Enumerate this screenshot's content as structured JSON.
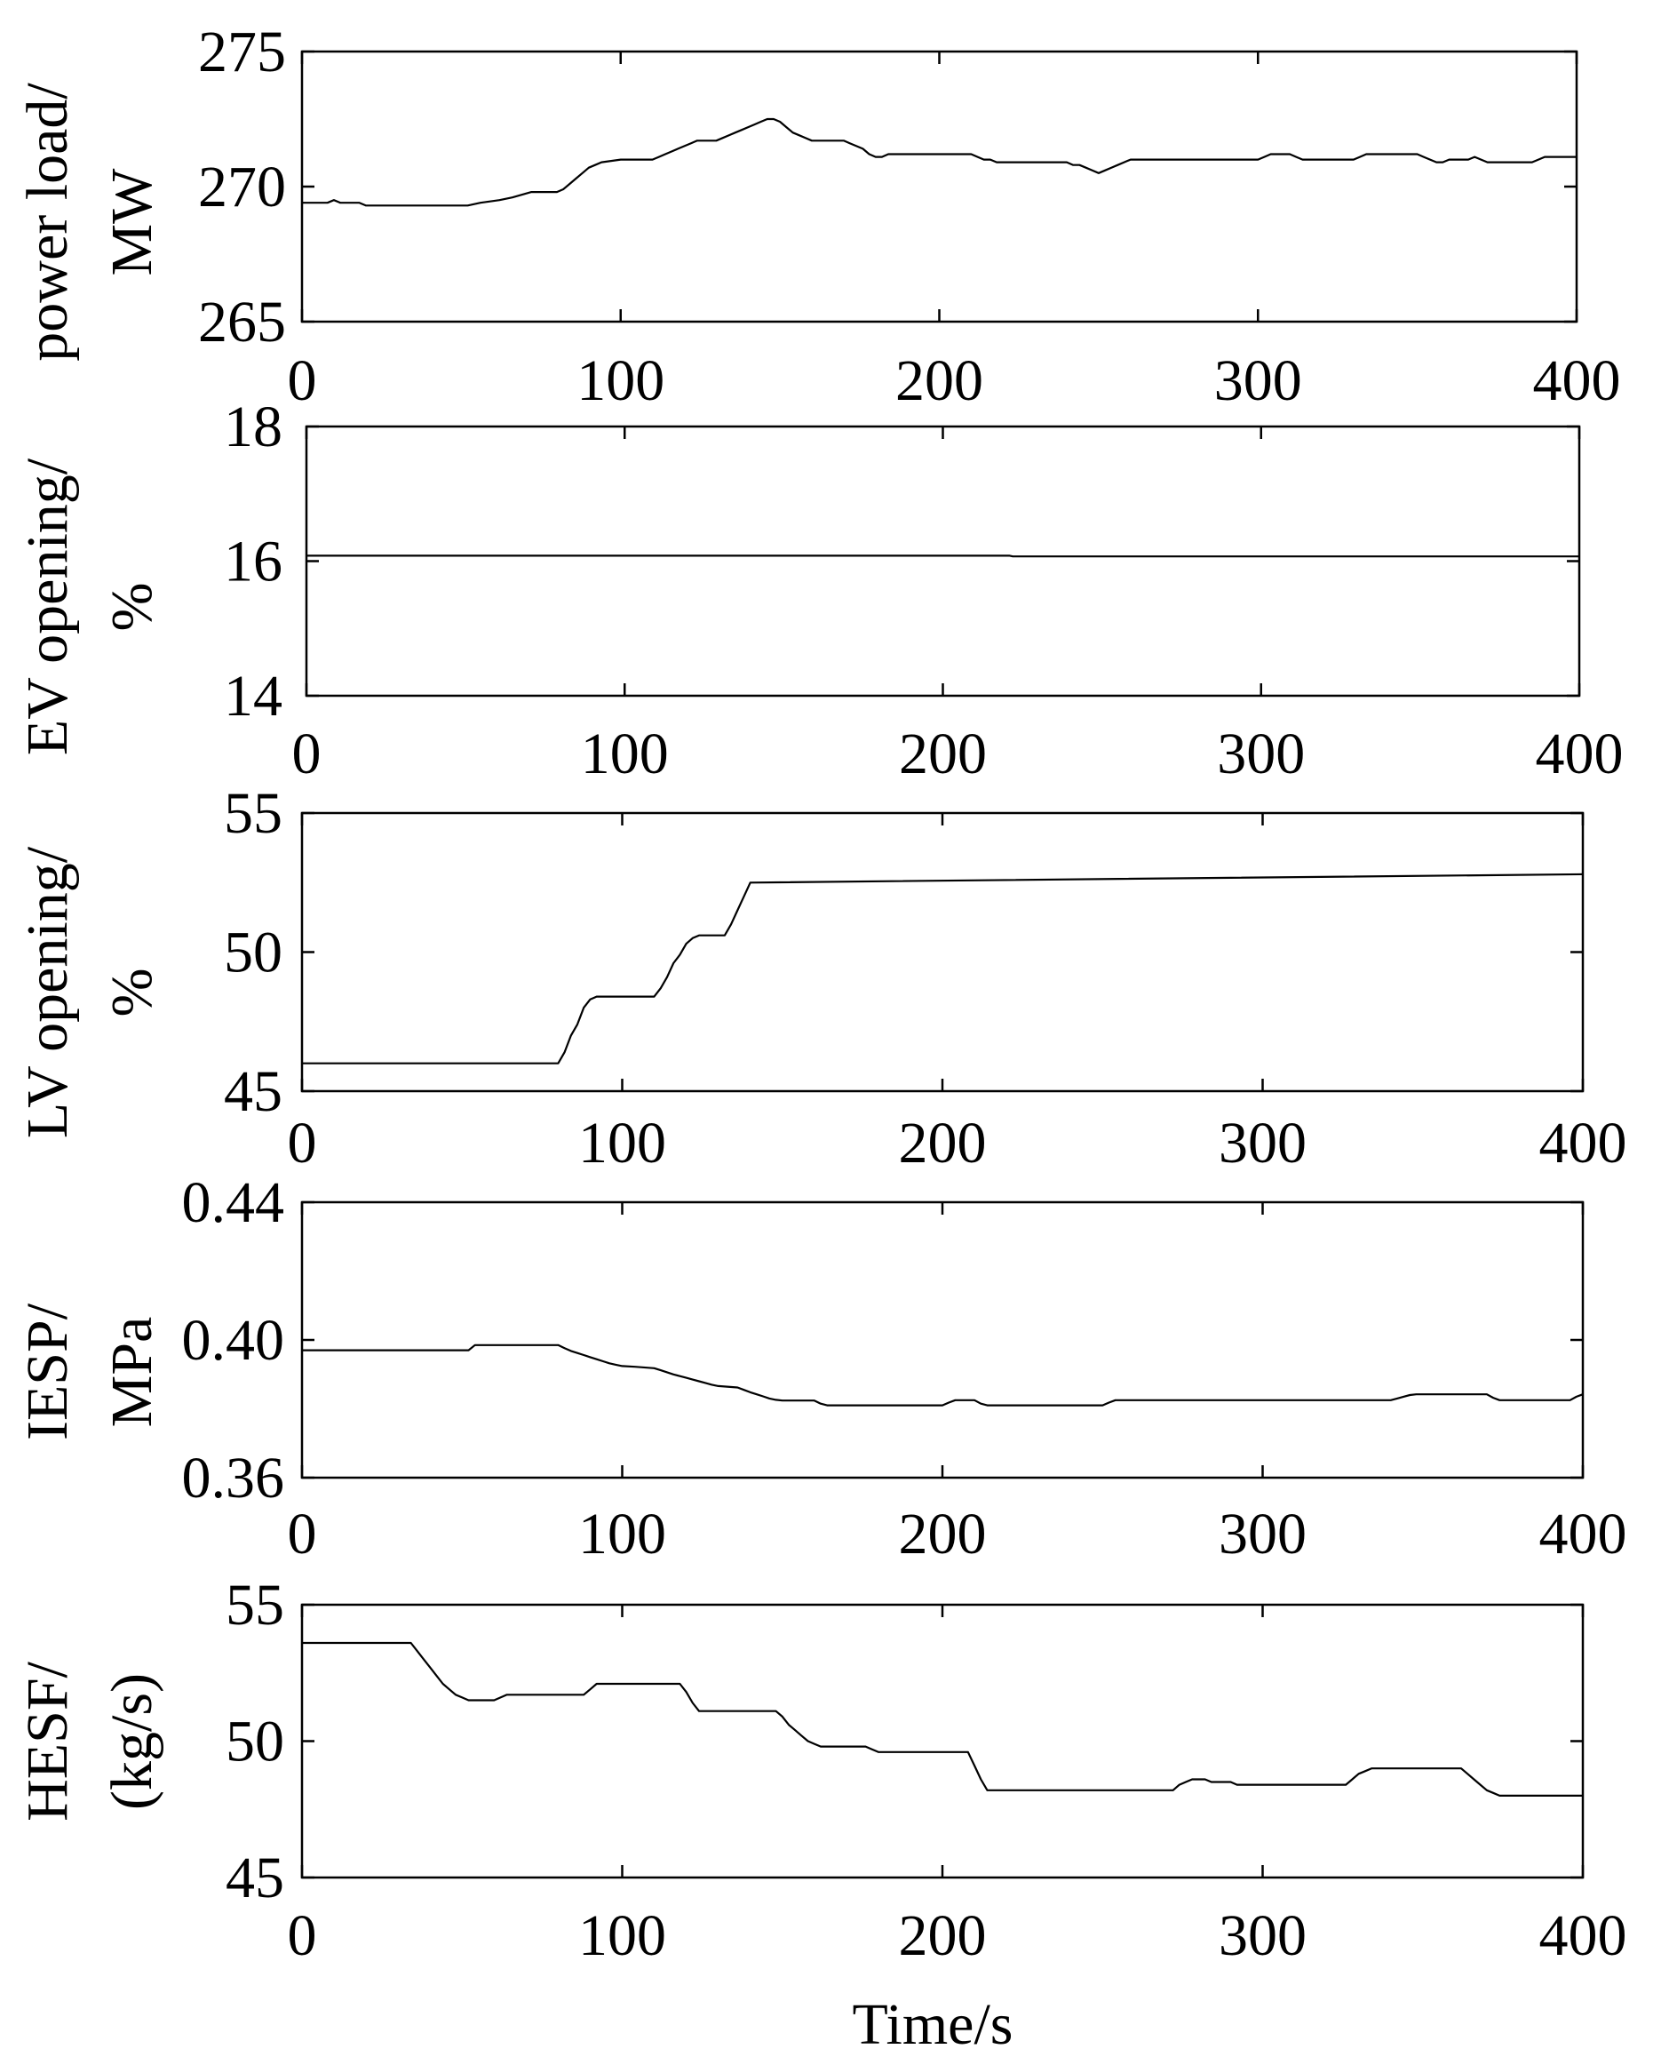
{
  "figure": {
    "xlabel": "Time/s"
  },
  "chart_data": [
    {
      "type": "line",
      "ylabel": [
        "power load/",
        "MW"
      ],
      "xlim": [
        0,
        400
      ],
      "ylim": [
        265,
        275
      ],
      "xticks": [
        0,
        100,
        200,
        300,
        400
      ],
      "xtick_labels": [
        "0",
        "100",
        "200",
        "300",
        "400"
      ],
      "yticks": [
        265,
        270,
        275
      ],
      "ytick_labels": [
        "265",
        "270",
        "275"
      ],
      "grid": false,
      "series": [
        {
          "x": [
            0,
            8,
            10,
            12,
            18,
            20,
            52,
            56,
            62,
            66,
            72,
            80,
            82,
            84,
            86,
            88,
            90,
            92,
            94,
            100,
            110,
            112,
            114,
            116,
            118,
            120,
            122,
            124,
            130,
            132,
            134,
            136,
            138,
            140,
            142,
            144,
            146,
            148,
            150,
            152,
            154,
            156,
            158,
            160,
            170,
            172,
            174,
            176,
            178,
            180,
            182,
            184,
            186,
            188,
            200,
            210,
            212,
            214,
            216,
            218,
            220,
            240,
            242,
            244,
            246,
            248,
            250,
            252,
            254,
            256,
            258,
            260,
            300,
            302,
            304,
            310,
            312,
            314,
            330,
            332,
            334,
            350,
            352,
            354,
            356,
            358,
            360,
            366,
            368,
            370,
            372,
            374,
            376,
            386,
            388,
            390,
            400
          ],
          "y": [
            269.4,
            269.4,
            269.5,
            269.4,
            269.4,
            269.3,
            269.3,
            269.4,
            269.5,
            269.6,
            269.8,
            269.8,
            269.9,
            270.1,
            270.3,
            270.5,
            270.7,
            270.8,
            270.9,
            271.0,
            271.0,
            271.1,
            271.2,
            271.3,
            271.4,
            271.5,
            271.6,
            271.7,
            271.7,
            271.8,
            271.9,
            272.0,
            272.1,
            272.2,
            272.3,
            272.4,
            272.5,
            272.5,
            272.4,
            272.2,
            272.0,
            271.9,
            271.8,
            271.7,
            271.7,
            271.6,
            271.5,
            271.4,
            271.2,
            271.1,
            271.1,
            271.2,
            271.2,
            271.2,
            271.2,
            271.2,
            271.1,
            271.0,
            271.0,
            270.9,
            270.9,
            270.9,
            270.8,
            270.8,
            270.7,
            270.6,
            270.5,
            270.6,
            270.7,
            270.8,
            270.9,
            271.0,
            271.0,
            271.1,
            271.2,
            271.2,
            271.1,
            271.0,
            271.0,
            271.1,
            271.2,
            271.2,
            271.1,
            271.0,
            270.9,
            270.9,
            271.0,
            271.0,
            271.1,
            271.0,
            270.9,
            270.9,
            270.9,
            270.9,
            271.0,
            271.1,
            271.1
          ]
        }
      ]
    },
    {
      "type": "line",
      "ylabel": [
        "EV opening/",
        "%"
      ],
      "xlim": [
        0,
        400
      ],
      "ylim": [
        14,
        18
      ],
      "xticks": [
        0,
        100,
        200,
        300,
        400
      ],
      "xtick_labels": [
        "0",
        "100",
        "200",
        "300",
        "400"
      ],
      "yticks": [
        14,
        16,
        18
      ],
      "ytick_labels": [
        "14",
        "16",
        "18"
      ],
      "grid": false,
      "series": [
        {
          "x": [
            0,
            221,
            222,
            400
          ],
          "y": [
            16.08,
            16.08,
            16.07,
            16.07
          ]
        }
      ]
    },
    {
      "type": "line",
      "ylabel": [
        "LV opening/",
        "%"
      ],
      "xlim": [
        0,
        400
      ],
      "ylim": [
        45,
        55
      ],
      "xticks": [
        0,
        100,
        200,
        300,
        400
      ],
      "xtick_labels": [
        "0",
        "100",
        "200",
        "300",
        "400"
      ],
      "yticks": [
        45,
        50,
        55
      ],
      "ytick_labels": [
        "45",
        "50",
        "55"
      ],
      "grid": false,
      "series": [
        {
          "x": [
            0,
            80,
            82,
            84,
            86,
            88,
            90,
            92,
            110,
            112,
            114,
            116,
            118,
            120,
            122,
            124,
            126,
            128,
            132,
            134,
            136,
            138,
            140,
            400
          ],
          "y": [
            46.0,
            46.0,
            46.4,
            47.0,
            47.4,
            48.0,
            48.3,
            48.4,
            48.4,
            48.7,
            49.1,
            49.6,
            49.9,
            50.3,
            50.5,
            50.6,
            50.6,
            50.6,
            50.6,
            51.0,
            51.5,
            52.0,
            52.5,
            52.8
          ]
        }
      ]
    },
    {
      "type": "line",
      "ylabel": [
        "IESP/",
        "MPa"
      ],
      "xlim": [
        0,
        400
      ],
      "ylim": [
        0.36,
        0.44
      ],
      "xticks": [
        0,
        100,
        200,
        300,
        400
      ],
      "xtick_labels": [
        "0",
        "100",
        "200",
        "300",
        "400"
      ],
      "yticks": [
        0.36,
        0.4,
        0.44
      ],
      "ytick_labels": [
        "0.36",
        "0.40",
        "0.44"
      ],
      "grid": false,
      "series": [
        {
          "x": [
            0,
            52,
            54,
            80,
            82,
            84,
            86,
            88,
            90,
            92,
            94,
            96,
            98,
            100,
            104,
            110,
            112,
            114,
            116,
            118,
            120,
            122,
            124,
            126,
            128,
            130,
            136,
            138,
            140,
            142,
            144,
            146,
            148,
            150,
            160,
            162,
            164,
            200,
            202,
            204,
            210,
            212,
            214,
            250,
            252,
            254,
            340,
            342,
            344,
            346,
            348,
            360,
            370,
            372,
            374,
            380,
            396,
            398,
            400
          ],
          "y": [
            0.397,
            0.397,
            0.3985,
            0.3985,
            0.3976,
            0.3968,
            0.3962,
            0.3956,
            0.395,
            0.3944,
            0.3938,
            0.3932,
            0.3928,
            0.3924,
            0.3922,
            0.3918,
            0.3912,
            0.3906,
            0.39,
            0.3895,
            0.389,
            0.3885,
            0.388,
            0.3875,
            0.387,
            0.3866,
            0.3862,
            0.3855,
            0.3848,
            0.3842,
            0.3836,
            0.383,
            0.3826,
            0.3824,
            0.3824,
            0.3815,
            0.381,
            0.381,
            0.3818,
            0.3825,
            0.3825,
            0.3815,
            0.381,
            0.381,
            0.3818,
            0.3825,
            0.3825,
            0.383,
            0.3835,
            0.384,
            0.3842,
            0.3842,
            0.3842,
            0.3832,
            0.3825,
            0.3825,
            0.3825,
            0.3835,
            0.3842
          ]
        }
      ]
    },
    {
      "type": "line",
      "ylabel": [
        "HESF/",
        "(kg/s)"
      ],
      "xlim": [
        0,
        400
      ],
      "ylim": [
        45,
        55
      ],
      "xticks": [
        0,
        100,
        200,
        300,
        400
      ],
      "xtick_labels": [
        "0",
        "100",
        "200",
        "300",
        "400"
      ],
      "yticks": [
        45,
        50,
        55
      ],
      "ytick_labels": [
        "45",
        "50",
        "55"
      ],
      "grid": false,
      "series": [
        {
          "x": [
            0,
            34,
            36,
            38,
            40,
            42,
            44,
            46,
            48,
            50,
            52,
            54,
            60,
            62,
            64,
            88,
            90,
            92,
            118,
            120,
            122,
            124,
            148,
            150,
            152,
            154,
            156,
            158,
            160,
            162,
            176,
            178,
            180,
            208,
            210,
            212,
            214,
            272,
            274,
            276,
            278,
            282,
            284,
            290,
            292,
            326,
            328,
            330,
            332,
            334,
            362,
            364,
            366,
            368,
            370,
            372,
            374,
            400
          ],
          "y": [
            53.6,
            53.6,
            53.3,
            53.0,
            52.7,
            52.4,
            52.1,
            51.9,
            51.7,
            51.6,
            51.5,
            51.5,
            51.5,
            51.6,
            51.7,
            51.7,
            51.9,
            52.1,
            52.1,
            51.8,
            51.4,
            51.1,
            51.1,
            50.9,
            50.6,
            50.4,
            50.2,
            50.0,
            49.9,
            49.8,
            49.8,
            49.7,
            49.6,
            49.6,
            49.1,
            48.6,
            48.2,
            48.2,
            48.4,
            48.5,
            48.6,
            48.6,
            48.5,
            48.5,
            48.4,
            48.4,
            48.6,
            48.8,
            48.9,
            49.0,
            49.0,
            48.8,
            48.6,
            48.4,
            48.2,
            48.1,
            48.0,
            48.0
          ]
        }
      ]
    }
  ]
}
